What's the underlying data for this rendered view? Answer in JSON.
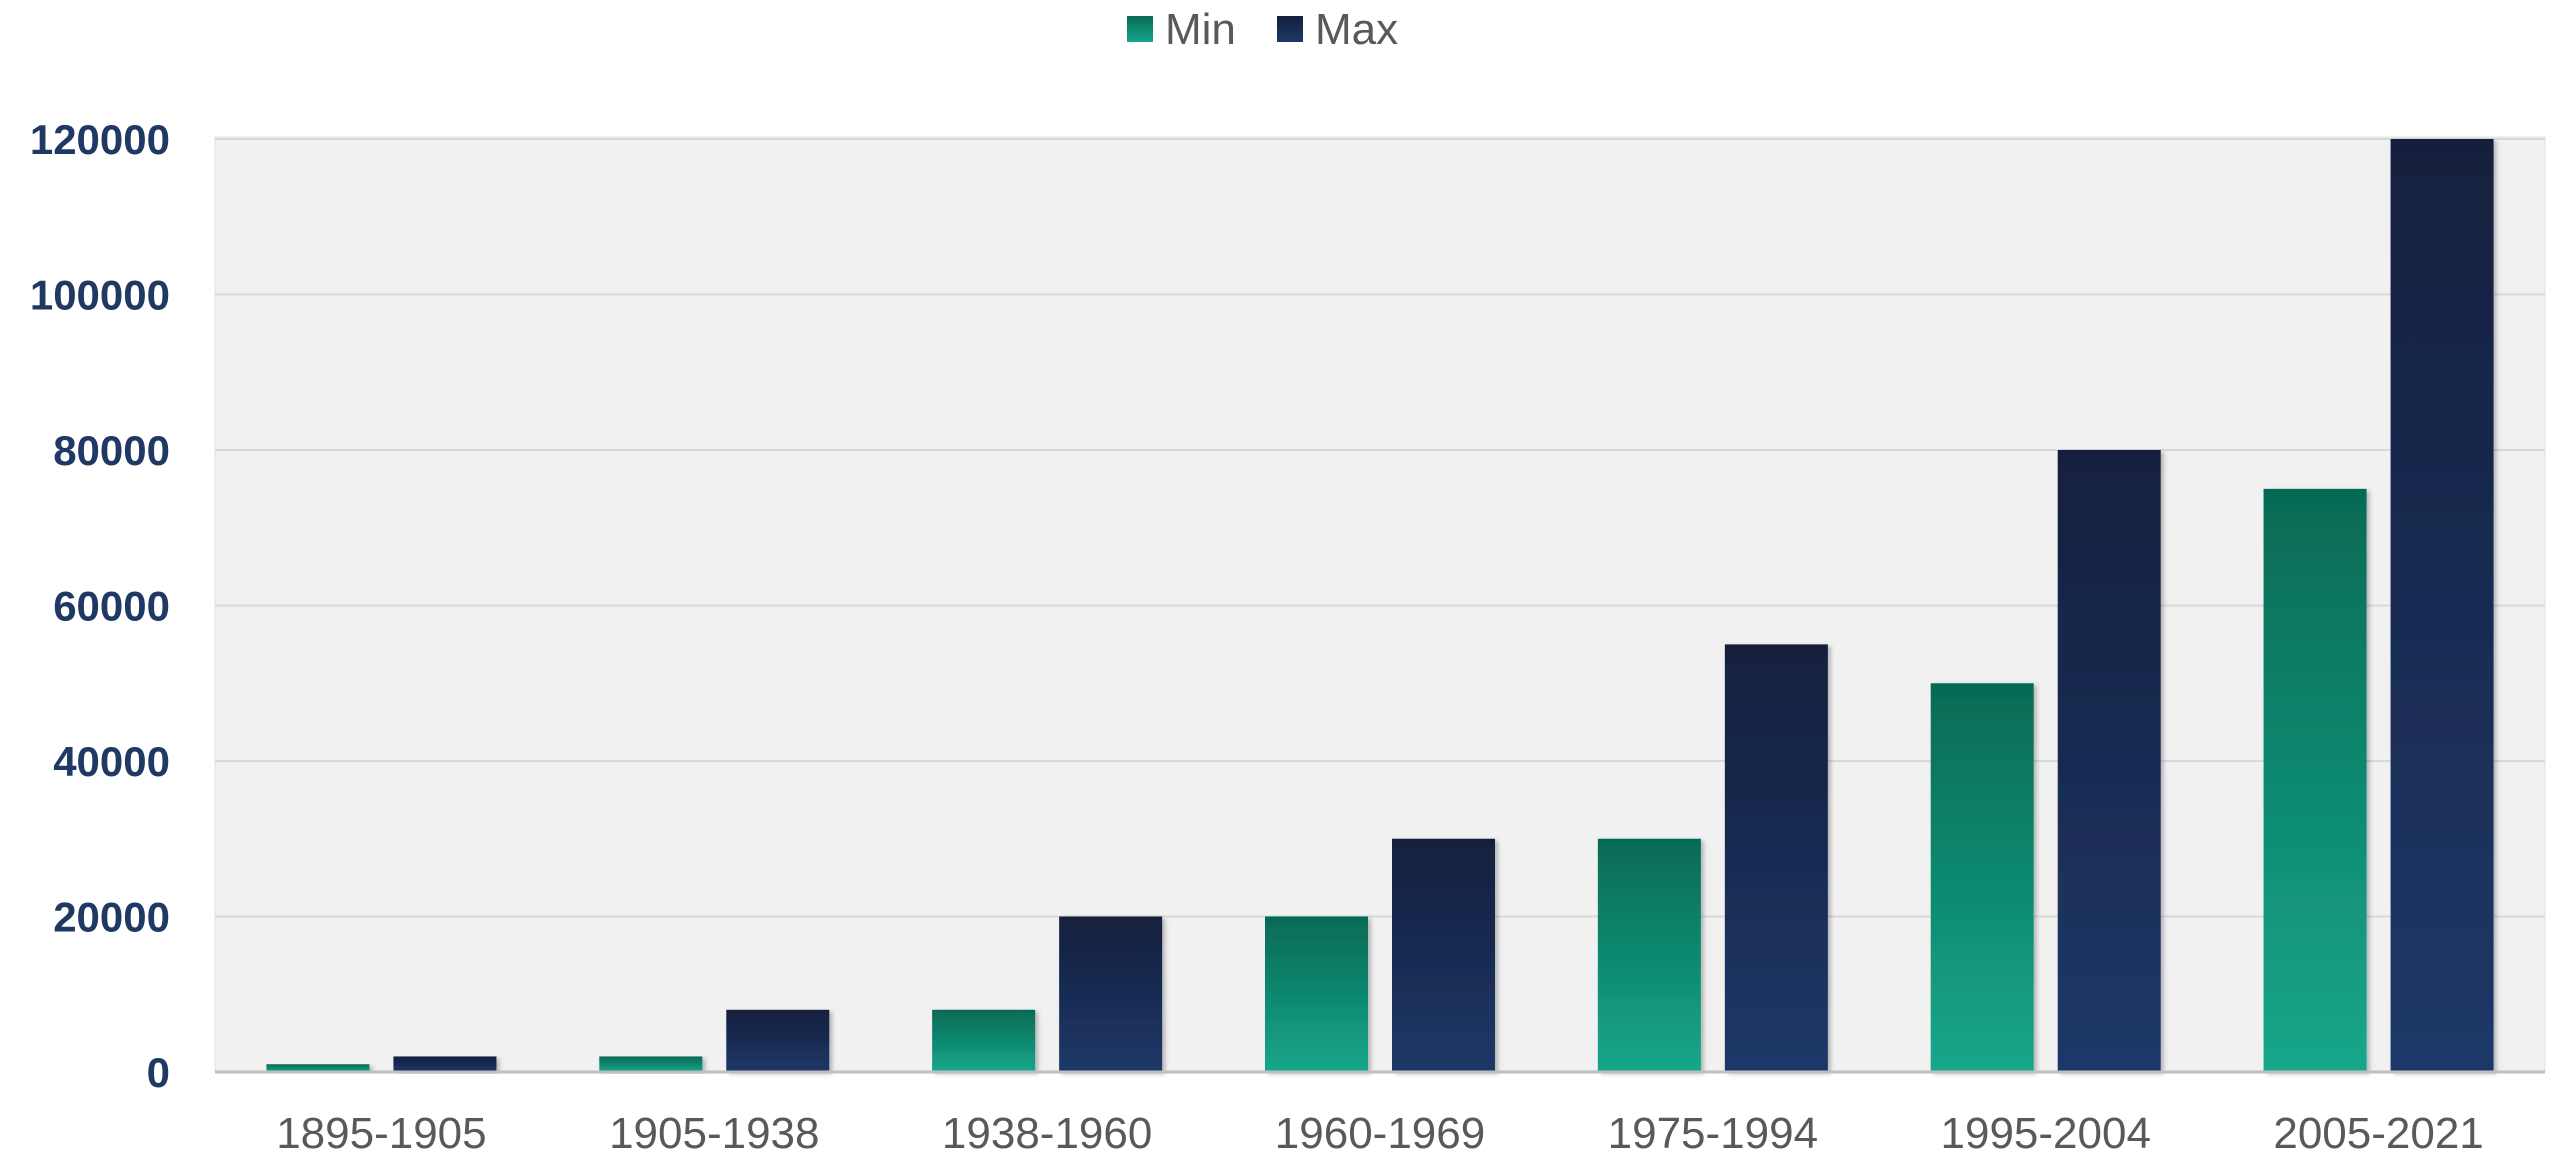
{
  "chart_data": {
    "type": "bar",
    "title": "",
    "xlabel": "",
    "ylabel": "",
    "categories": [
      "1895-1905",
      "1905-1938",
      "1938-1960",
      "1960-1969",
      "1975-1994",
      "1995-2004",
      "2005-2021"
    ],
    "series": [
      {
        "name": "Min",
        "values": [
          1000,
          2000,
          8000,
          20000,
          30000,
          50000,
          75000
        ]
      },
      {
        "name": "Max",
        "values": [
          2000,
          8000,
          20000,
          30000,
          55000,
          80000,
          120000
        ]
      }
    ],
    "ylim": [
      0,
      120000
    ],
    "yticks": [
      "0",
      "20000",
      "40000",
      "60000",
      "80000",
      "100000",
      "120000"
    ],
    "grid": true,
    "legend_position": "top-center",
    "colors": {
      "Min": {
        "top": "#066a55",
        "bottom": "#17a78b"
      },
      "Max": {
        "top": "#121f3d",
        "bottom": "#1f3868"
      },
      "plot_background": "#f1f1f1",
      "gridline": "#d9d9d9"
    }
  }
}
